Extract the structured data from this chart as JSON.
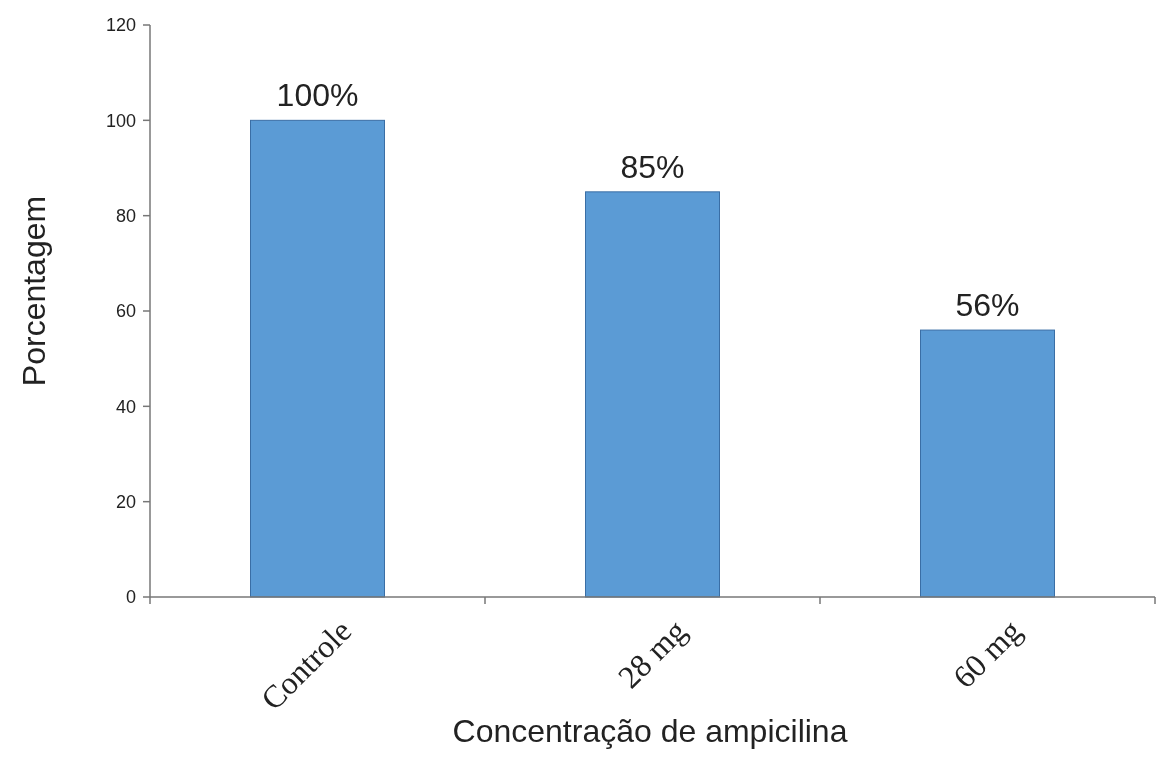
{
  "chart_data": {
    "type": "bar",
    "xlabel": "Concentração de ampicilina",
    "ylabel": "Porcentagem",
    "categories": [
      "Controle",
      "28 mg",
      "60 mg"
    ],
    "values": [
      100,
      85,
      56
    ],
    "value_labels": [
      "100%",
      "85%",
      "56%"
    ],
    "color": "#5b9bd5",
    "ylim": [
      0,
      120
    ],
    "yticks": [
      0,
      20,
      40,
      60,
      80,
      100,
      120
    ],
    "grid": false
  }
}
